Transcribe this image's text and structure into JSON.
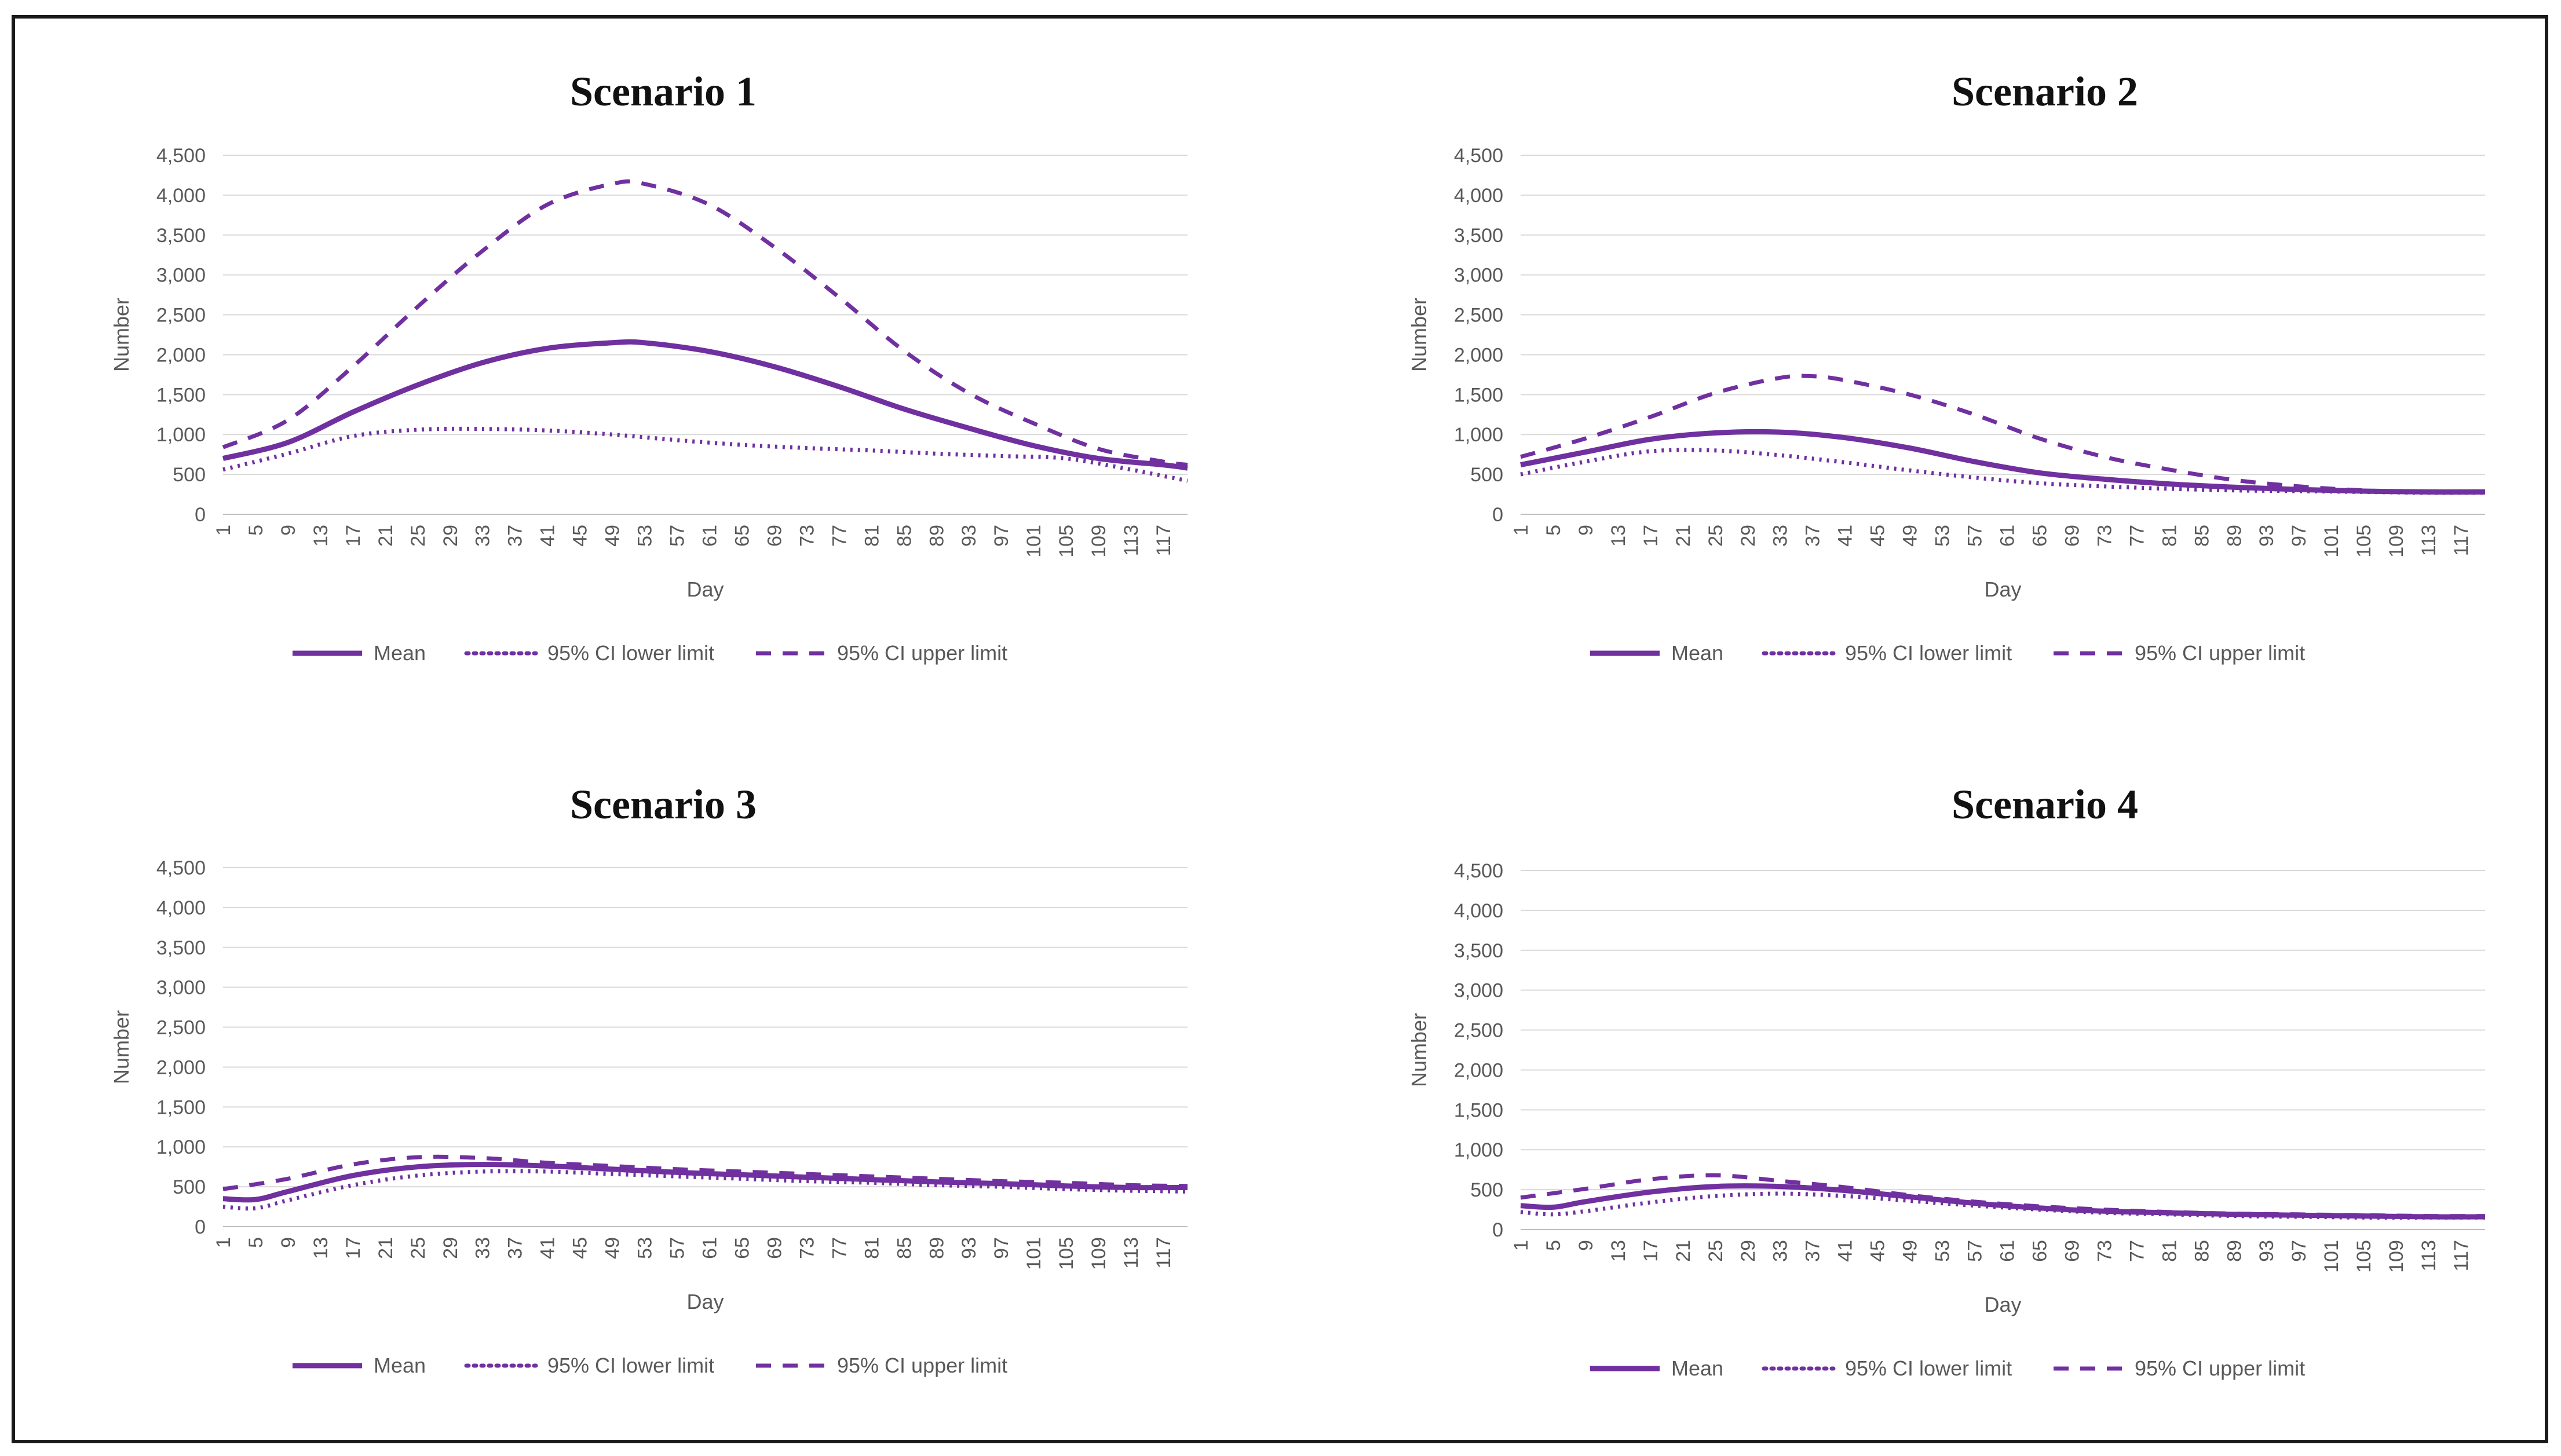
{
  "chart_data": [
    {
      "type": "line",
      "title": "Scenario 1",
      "xlabel": "Day",
      "ylabel": "Number",
      "xlim": [
        1,
        120
      ],
      "ylim": [
        0,
        4500
      ],
      "x_tick_labels": [
        "1",
        "5",
        "9",
        "13",
        "17",
        "21",
        "25",
        "29",
        "33",
        "37",
        "41",
        "45",
        "49",
        "53",
        "57",
        "61",
        "65",
        "69",
        "73",
        "77",
        "81",
        "85",
        "89",
        "93",
        "97",
        "101",
        "105",
        "109",
        "113",
        "117"
      ],
      "y_tick_labels": [
        "0",
        "500",
        "1,000",
        "1,500",
        "2,000",
        "2,500",
        "3,000",
        "3,500",
        "4,000",
        "4,500"
      ],
      "legend": "bottom",
      "series": [
        {
          "name": "Mean",
          "style": "solid",
          "x": [
            1,
            9,
            17,
            25,
            33,
            41,
            49,
            53,
            61,
            69,
            77,
            85,
            93,
            101,
            109,
            117,
            120
          ],
          "values": [
            700,
            900,
            1280,
            1620,
            1900,
            2080,
            2150,
            2150,
            2040,
            1850,
            1600,
            1320,
            1080,
            860,
            700,
            620,
            580
          ]
        },
        {
          "name": "95% CI lower limit",
          "style": "dotted",
          "x": [
            1,
            9,
            17,
            25,
            33,
            41,
            49,
            57,
            65,
            73,
            81,
            89,
            97,
            105,
            113,
            117,
            120
          ],
          "values": [
            560,
            760,
            980,
            1060,
            1070,
            1050,
            1000,
            930,
            870,
            830,
            800,
            760,
            730,
            700,
            560,
            480,
            420
          ]
        },
        {
          "name": "95% CI upper limit",
          "style": "dashed",
          "x": [
            1,
            9,
            17,
            25,
            33,
            41,
            49,
            53,
            61,
            69,
            77,
            85,
            93,
            101,
            109,
            117,
            120
          ],
          "values": [
            840,
            1180,
            1850,
            2600,
            3300,
            3880,
            4140,
            4140,
            3880,
            3350,
            2720,
            2050,
            1520,
            1140,
            820,
            660,
            620
          ]
        }
      ]
    },
    {
      "type": "line",
      "title": "Scenario 2",
      "xlabel": "Day",
      "ylabel": "Number",
      "xlim": [
        1,
        120
      ],
      "ylim": [
        0,
        4500
      ],
      "x_tick_labels": [
        "1",
        "5",
        "9",
        "13",
        "17",
        "21",
        "25",
        "29",
        "33",
        "37",
        "41",
        "45",
        "49",
        "53",
        "57",
        "61",
        "65",
        "69",
        "73",
        "77",
        "81",
        "85",
        "89",
        "93",
        "97",
        "101",
        "105",
        "109",
        "113",
        "117"
      ],
      "y_tick_labels": [
        "0",
        "500",
        "1,000",
        "1,500",
        "2,000",
        "2,500",
        "3,000",
        "3,500",
        "4,000",
        "4,500"
      ],
      "legend": "bottom",
      "series": [
        {
          "name": "Mean",
          "style": "solid",
          "x": [
            1,
            9,
            17,
            25,
            33,
            41,
            49,
            57,
            65,
            73,
            81,
            89,
            97,
            105,
            113,
            120
          ],
          "values": [
            620,
            780,
            940,
            1020,
            1030,
            960,
            830,
            660,
            520,
            440,
            380,
            340,
            310,
            290,
            280,
            280
          ]
        },
        {
          "name": "95% CI lower limit",
          "style": "dotted",
          "x": [
            1,
            9,
            17,
            25,
            33,
            41,
            49,
            57,
            65,
            73,
            81,
            89,
            97,
            105,
            113,
            120
          ],
          "values": [
            500,
            660,
            790,
            800,
            740,
            650,
            550,
            460,
            390,
            350,
            320,
            300,
            290,
            280,
            270,
            270
          ]
        },
        {
          "name": "95% CI upper limit",
          "style": "dashed",
          "x": [
            1,
            9,
            17,
            25,
            33,
            37,
            41,
            49,
            57,
            65,
            73,
            81,
            89,
            97,
            105,
            113,
            120
          ],
          "values": [
            720,
            950,
            1220,
            1520,
            1710,
            1730,
            1680,
            1500,
            1250,
            950,
            720,
            560,
            430,
            350,
            300,
            280,
            280
          ]
        }
      ]
    },
    {
      "type": "line",
      "title": "Scenario 3",
      "xlabel": "Day",
      "ylabel": "Number",
      "xlim": [
        1,
        120
      ],
      "ylim": [
        0,
        4500
      ],
      "x_tick_labels": [
        "1",
        "5",
        "9",
        "13",
        "17",
        "21",
        "25",
        "29",
        "33",
        "37",
        "41",
        "45",
        "49",
        "53",
        "57",
        "61",
        "65",
        "69",
        "73",
        "77",
        "81",
        "85",
        "89",
        "93",
        "97",
        "101",
        "105",
        "109",
        "113",
        "117"
      ],
      "y_tick_labels": [
        "0",
        "500",
        "1,000",
        "1,500",
        "2,000",
        "2,500",
        "3,000",
        "3,500",
        "4,000",
        "4,500"
      ],
      "legend": "bottom",
      "series": [
        {
          "name": "Mean",
          "style": "solid",
          "x": [
            1,
            5,
            9,
            17,
            25,
            33,
            41,
            49,
            57,
            65,
            73,
            81,
            89,
            97,
            105,
            113,
            120
          ],
          "values": [
            350,
            340,
            440,
            640,
            750,
            780,
            760,
            720,
            680,
            650,
            620,
            590,
            560,
            540,
            510,
            490,
            490
          ]
        },
        {
          "name": "95% CI lower limit",
          "style": "dotted",
          "x": [
            1,
            5,
            9,
            17,
            25,
            33,
            41,
            49,
            57,
            65,
            73,
            81,
            89,
            97,
            105,
            113,
            120
          ],
          "values": [
            250,
            230,
            330,
            520,
            640,
            690,
            690,
            660,
            630,
            600,
            570,
            550,
            520,
            500,
            470,
            450,
            440
          ]
        },
        {
          "name": "95% CI upper limit",
          "style": "dashed",
          "x": [
            1,
            9,
            17,
            25,
            33,
            41,
            49,
            57,
            65,
            73,
            81,
            89,
            97,
            105,
            113,
            120
          ],
          "values": [
            470,
            600,
            780,
            870,
            860,
            800,
            760,
            720,
            690,
            660,
            630,
            600,
            570,
            550,
            520,
            510
          ]
        }
      ]
    },
    {
      "type": "line",
      "title": "Scenario 4",
      "xlabel": "Day",
      "ylabel": "Number",
      "xlim": [
        1,
        120
      ],
      "ylim": [
        0,
        4500
      ],
      "x_tick_labels": [
        "1",
        "5",
        "9",
        "13",
        "17",
        "21",
        "25",
        "29",
        "33",
        "37",
        "41",
        "45",
        "49",
        "53",
        "57",
        "61",
        "65",
        "69",
        "73",
        "77",
        "81",
        "85",
        "89",
        "93",
        "97",
        "101",
        "105",
        "109",
        "113",
        "117"
      ],
      "y_tick_labels": [
        "0",
        "500",
        "1,000",
        "1,500",
        "2,000",
        "2,500",
        "3,000",
        "3,500",
        "4,000",
        "4,500"
      ],
      "legend": "bottom",
      "series": [
        {
          "name": "Mean",
          "style": "solid",
          "x": [
            1,
            5,
            9,
            17,
            25,
            33,
            41,
            49,
            57,
            65,
            73,
            81,
            89,
            97,
            105,
            113,
            120
          ],
          "values": [
            300,
            280,
            350,
            470,
            540,
            540,
            490,
            410,
            330,
            270,
            230,
            210,
            190,
            180,
            170,
            160,
            160
          ]
        },
        {
          "name": "95% CI lower limit",
          "style": "dotted",
          "x": [
            1,
            5,
            9,
            17,
            25,
            33,
            41,
            49,
            57,
            65,
            73,
            81,
            89,
            97,
            105,
            113,
            120
          ],
          "values": [
            220,
            190,
            230,
            340,
            420,
            450,
            420,
            360,
            300,
            250,
            210,
            190,
            170,
            160,
            150,
            150,
            150
          ]
        },
        {
          "name": "95% CI upper limit",
          "style": "dashed",
          "x": [
            1,
            9,
            17,
            25,
            33,
            41,
            49,
            57,
            65,
            73,
            81,
            89,
            97,
            105,
            113,
            120
          ],
          "values": [
            400,
            510,
            630,
            680,
            610,
            530,
            430,
            350,
            290,
            250,
            220,
            200,
            190,
            180,
            170,
            170
          ]
        }
      ]
    }
  ],
  "colors": {
    "series_purple": "#7030A0"
  }
}
